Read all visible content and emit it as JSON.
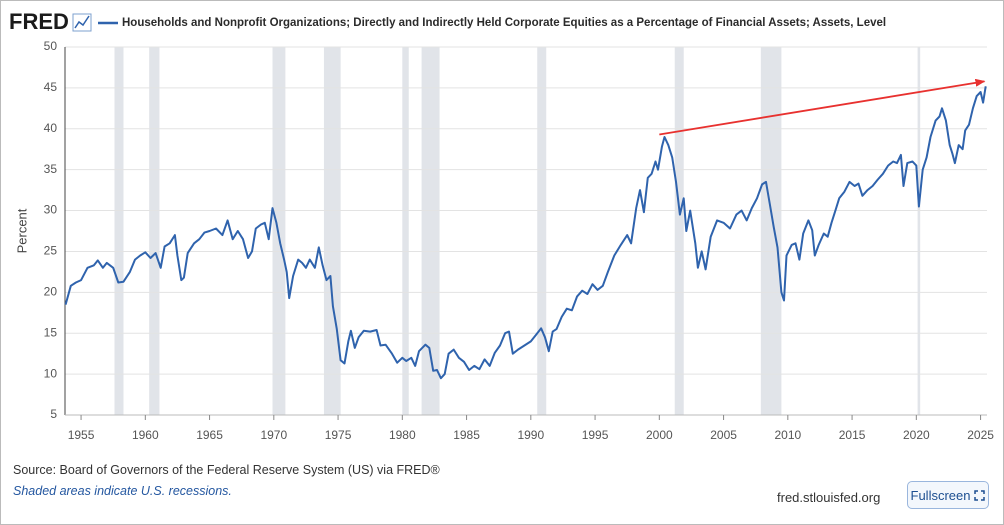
{
  "chart_data": {
    "type": "line",
    "logo": "FRED",
    "ylabel": "Percent",
    "xlim": [
      1953.75,
      2025.5
    ],
    "ylim": [
      5,
      50
    ],
    "xticks": [
      1955,
      1960,
      1965,
      1970,
      1975,
      1980,
      1985,
      1990,
      1995,
      2000,
      2005,
      2010,
      2015,
      2020,
      2025
    ],
    "yticks": [
      5,
      10,
      15,
      20,
      25,
      30,
      35,
      40,
      45,
      50
    ],
    "grid": true,
    "recession_color": "#e1e4e9",
    "recessions": [
      [
        1957.6,
        1958.3
      ],
      [
        1960.3,
        1961.1
      ],
      [
        1969.9,
        1970.9
      ],
      [
        1973.9,
        1975.2
      ],
      [
        1980.0,
        1980.5
      ],
      [
        1981.5,
        1982.9
      ],
      [
        1990.5,
        1991.2
      ],
      [
        2001.2,
        2001.9
      ],
      [
        2007.9,
        2009.5
      ],
      [
        2020.1,
        2020.3
      ]
    ],
    "x": [
      1953.8,
      1954.2,
      1954.6,
      1955.0,
      1955.5,
      1956.0,
      1956.3,
      1956.7,
      1957.0,
      1957.5,
      1957.9,
      1958.3,
      1958.8,
      1959.2,
      1959.6,
      1960.0,
      1960.4,
      1960.8,
      1961.2,
      1961.5,
      1961.9,
      1962.3,
      1962.5,
      1962.8,
      1963.0,
      1963.3,
      1963.8,
      1964.2,
      1964.6,
      1965.0,
      1965.5,
      1966.0,
      1966.4,
      1966.8,
      1967.2,
      1967.6,
      1968.0,
      1968.3,
      1968.6,
      1969.0,
      1969.3,
      1969.6,
      1969.9,
      1970.2,
      1970.5,
      1970.8,
      1971.0,
      1971.2,
      1971.5,
      1971.9,
      1972.2,
      1972.5,
      1972.8,
      1973.2,
      1973.5,
      1973.8,
      1974.1,
      1974.4,
      1974.6,
      1974.9,
      1975.2,
      1975.5,
      1975.8,
      1976.0,
      1976.3,
      1976.6,
      1977.0,
      1977.5,
      1978.0,
      1978.3,
      1978.7,
      1979.2,
      1979.6,
      1980.0,
      1980.3,
      1980.7,
      1981.0,
      1981.3,
      1981.8,
      1982.1,
      1982.4,
      1982.7,
      1983.0,
      1983.3,
      1983.6,
      1984.0,
      1984.4,
      1984.8,
      1985.2,
      1985.6,
      1986.0,
      1986.4,
      1986.8,
      1987.2,
      1987.6,
      1988.0,
      1988.3,
      1988.6,
      1989.0,
      1989.5,
      1990.0,
      1990.4,
      1990.8,
      1991.1,
      1991.4,
      1991.7,
      1992.0,
      1992.4,
      1992.8,
      1993.2,
      1993.6,
      1994.0,
      1994.4,
      1994.8,
      1995.2,
      1995.6,
      1996.0,
      1996.5,
      1997.0,
      1997.5,
      1997.8,
      1998.2,
      1998.5,
      1998.8,
      1999.1,
      1999.4,
      1999.7,
      1999.9,
      2000.2,
      2000.4,
      2000.7,
      2001.0,
      2001.3,
      2001.6,
      2001.9,
      2002.1,
      2002.4,
      2002.8,
      2003.0,
      2003.3,
      2003.6,
      2004.0,
      2004.5,
      2005.0,
      2005.5,
      2006.0,
      2006.4,
      2006.8,
      2007.2,
      2007.6,
      2008.0,
      2008.3,
      2008.6,
      2008.9,
      2009.2,
      2009.5,
      2009.7,
      2009.9,
      2010.3,
      2010.6,
      2010.9,
      2011.2,
      2011.6,
      2011.9,
      2012.1,
      2012.4,
      2012.8,
      2013.1,
      2013.4,
      2013.7,
      2014.0,
      2014.4,
      2014.8,
      2015.2,
      2015.5,
      2015.8,
      2016.2,
      2016.6,
      2017.0,
      2017.4,
      2017.8,
      2018.2,
      2018.5,
      2018.8,
      2019.0,
      2019.3,
      2019.7,
      2020.0,
      2020.2,
      2020.5,
      2020.8,
      2021.1,
      2021.5,
      2021.8,
      2022.0,
      2022.3,
      2022.6,
      2022.8,
      2023.0,
      2023.3,
      2023.6,
      2023.8,
      2024.1,
      2024.4,
      2024.7,
      2025.0,
      2025.2,
      2025.4
    ],
    "series": [
      {
        "name": "Households and Nonprofit Organizations; Directly and Indirectly Held Corporate Equities as a Percentage of Financial Assets; Assets, Level",
        "color": "#2f63ad",
        "values": [
          18.5,
          20.8,
          21.2,
          21.5,
          23.0,
          23.3,
          23.9,
          23.0,
          23.6,
          23.0,
          21.2,
          21.3,
          22.5,
          24.0,
          24.5,
          24.9,
          24.2,
          24.8,
          23.0,
          25.6,
          26.0,
          27.0,
          24.5,
          21.5,
          21.8,
          24.8,
          26.0,
          26.5,
          27.3,
          27.5,
          27.8,
          27.0,
          28.8,
          26.5,
          27.5,
          26.5,
          24.2,
          25.0,
          27.8,
          28.3,
          28.5,
          26.5,
          30.3,
          28.5,
          26.0,
          24.0,
          22.5,
          19.3,
          22.0,
          24.0,
          23.6,
          23.0,
          24.0,
          23.0,
          25.5,
          23.3,
          21.5,
          22.0,
          18.3,
          15.5,
          11.7,
          11.3,
          14.0,
          15.3,
          13.2,
          14.5,
          15.3,
          15.2,
          15.4,
          13.5,
          13.6,
          12.5,
          11.4,
          12.0,
          11.6,
          12.0,
          11.0,
          12.8,
          13.6,
          13.2,
          10.4,
          10.5,
          9.5,
          10.0,
          12.5,
          13.0,
          12.0,
          11.5,
          10.5,
          11.0,
          10.6,
          11.8,
          11.0,
          12.6,
          13.5,
          15.0,
          15.2,
          12.5,
          13.0,
          13.5,
          14.0,
          14.8,
          15.6,
          14.5,
          12.8,
          15.2,
          15.5,
          17.0,
          18.0,
          17.8,
          19.5,
          20.2,
          19.8,
          21.0,
          20.3,
          20.8,
          22.5,
          24.5,
          25.8,
          27.0,
          26.0,
          30.3,
          32.5,
          29.8,
          34.0,
          34.5,
          36.0,
          35.0,
          37.8,
          39.0,
          38.0,
          36.5,
          33.5,
          29.5,
          31.5,
          27.5,
          30.0,
          26.0,
          23.0,
          25.0,
          22.8,
          26.8,
          28.8,
          28.5,
          27.8,
          29.5,
          30.0,
          28.8,
          30.3,
          31.5,
          33.2,
          33.5,
          30.8,
          28.0,
          25.5,
          20.0,
          19.0,
          24.5,
          25.8,
          26.0,
          24.0,
          27.2,
          28.8,
          27.6,
          24.5,
          25.8,
          27.2,
          26.8,
          28.5,
          30.0,
          31.5,
          32.3,
          33.5,
          33.0,
          33.3,
          31.8,
          32.5,
          33.0,
          33.8,
          34.5,
          35.5,
          36.0,
          35.8,
          36.8,
          33.0,
          35.8,
          36.0,
          35.5,
          30.5,
          35.0,
          36.5,
          39.0,
          41.0,
          41.5,
          42.5,
          41.0,
          38.0,
          37.0,
          35.8,
          38.0,
          37.5,
          39.8,
          40.5,
          42.5,
          44.0,
          44.5,
          43.2,
          45.2
        ]
      }
    ],
    "arrow": {
      "x": [
        2000.0,
        2025.3
      ],
      "y": [
        39.3,
        45.8
      ],
      "color": "#e8312f"
    },
    "source": "Source: Board of Governors of the Federal Reserve System (US) via FRED®",
    "note": "Shaded areas indicate U.S. recessions.",
    "site": "fred.stlouisfed.org",
    "button": "Fullscreen"
  }
}
